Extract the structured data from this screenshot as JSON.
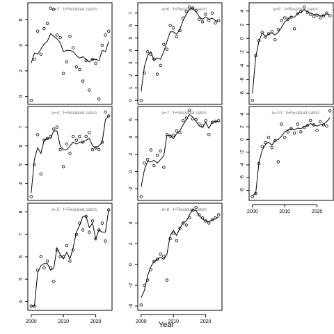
{
  "figure": {
    "xlabel": "Year"
  },
  "chart_data": [
    {
      "type": "scatter",
      "title": "a=3 : f=Residual catch",
      "xlim": [
        2000,
        2024
      ],
      "ylim": [
        -0.3,
        7.0
      ],
      "yticks": [
        0,
        2,
        4,
        6
      ],
      "xticks": [],
      "x": [
        2000,
        2001,
        2002,
        2003,
        2004,
        2005,
        2006,
        2007,
        2008,
        2009,
        2010,
        2011,
        2012,
        2013,
        2014,
        2015,
        2016,
        2017,
        2018,
        2019,
        2020,
        2021,
        2022,
        2023,
        2024
      ],
      "points": [
        -0.3,
        2.9,
        5.1,
        3.3,
        5.3,
        5.7,
        6.9,
        6.8,
        4.8,
        4.6,
        1.8,
        2.7,
        4.7,
        3.8,
        2.3,
        2.1,
        1.2,
        2.8,
        0.5,
        2.9,
        2.6,
        -0.2,
        4.0,
        4.8,
        5.1
      ],
      "line": [
        2.6,
        3.4,
        3.3,
        3.7,
        4.1,
        4.3,
        4.9,
        4.7,
        4.5,
        4.2,
        3.5,
        3.6,
        3.6,
        3.5,
        3.2,
        3.0,
        3.1,
        2.9,
        2.7,
        2.9,
        2.9,
        2.8,
        3.6,
        3.5,
        4.3
      ]
    },
    {
      "type": "scatter",
      "title": "a=4 : f=Residual catch",
      "xlim": [
        2000,
        2024
      ],
      "ylim": [
        3.3,
        7.9
      ],
      "yticks": [
        4,
        5,
        6,
        7
      ],
      "xticks": [],
      "x": [
        2000,
        2001,
        2002,
        2003,
        2004,
        2005,
        2006,
        2007,
        2008,
        2009,
        2010,
        2011,
        2012,
        2013,
        2014,
        2015,
        2016,
        2017,
        2018,
        2019,
        2020,
        2021,
        2022,
        2023,
        2024
      ],
      "points": [
        3.3,
        5.0,
        6.6,
        4.5,
        6.3,
        6.4,
        6.5,
        6.9,
        7.0,
        5.8,
        4.9,
        6.1,
        5.6,
        6.5,
        6.3,
        6.5,
        6.2,
        6.5,
        6.7,
        5.8,
        5.9,
        5.8,
        6.2,
        7.8,
        7.6
      ],
      "line": [
        3.5,
        5.3,
        5.9,
        5.6,
        6.3,
        6.4,
        6.4,
        6.8,
        6.8,
        6.0,
        5.8,
        5.8,
        6.0,
        6.2,
        6.1,
        6.2,
        6.2,
        6.3,
        6.4,
        6.0,
        5.9,
        6.0,
        6.2,
        7.4,
        7.6
      ]
    },
    {
      "type": "scatter",
      "title": "a=5 : f=Residual catch",
      "xlim": [
        2000,
        2024
      ],
      "ylim": [
        3.8,
        8.2
      ],
      "yticks": [
        4,
        5,
        6,
        7,
        8
      ],
      "xticks": [
        2000,
        2010,
        2020
      ],
      "x": [
        2000,
        2001,
        2002,
        2003,
        2004,
        2005,
        2006,
        2007,
        2008,
        2009,
        2010,
        2011,
        2012,
        2013,
        2014,
        2015,
        2016,
        2017,
        2018,
        2019,
        2020,
        2021,
        2022,
        2023,
        2024
      ],
      "points": [
        3.8,
        3.8,
        5.4,
        6.0,
        5.5,
        5.8,
        5.5,
        4.9,
        6.3,
        6.0,
        6.0,
        6.5,
        5.8,
        6.3,
        7.0,
        7.5,
        7.2,
        7.8,
        7.1,
        7.6,
        6.8,
        7.2,
        7.5,
        6.7,
        8.1
      ],
      "line": [
        3.8,
        3.8,
        5.3,
        5.6,
        5.7,
        5.7,
        5.4,
        5.5,
        6.4,
        6.1,
        5.9,
        6.2,
        5.9,
        6.4,
        7.1,
        7.4,
        7.8,
        7.8,
        7.3,
        7.5,
        6.8,
        7.2,
        7.1,
        7.1,
        8.1
      ]
    },
    {
      "type": "scatter",
      "title": "a=6 : f=Residual catch",
      "xlim": [
        2000,
        2024
      ],
      "ylim": [
        0.0,
        7.5
      ],
      "yticks": [
        0,
        1,
        2,
        3,
        4,
        5,
        6,
        7
      ],
      "xticks": [],
      "x": [
        2000,
        2001,
        2002,
        2003,
        2004,
        2005,
        2006,
        2007,
        2008,
        2009,
        2010,
        2011,
        2012,
        2013,
        2014,
        2015,
        2016,
        2017,
        2018,
        2019,
        2020,
        2021,
        2022,
        2023,
        2024
      ],
      "points": [
        0.0,
        2.2,
        3.9,
        3.7,
        3.3,
        2.1,
        2.8,
        4.5,
        4.1,
        6.0,
        5.8,
        5.1,
        5.6,
        6.6,
        7.1,
        7.5,
        7.4,
        7.2,
        6.5,
        6.3,
        6.9,
        6.4,
        7.0,
        6.2,
        6.4
      ],
      "line": [
        0.7,
        2.7,
        3.6,
        3.9,
        3.2,
        3.4,
        3.3,
        3.9,
        4.7,
        5.5,
        5.5,
        5.3,
        5.7,
        6.4,
        6.9,
        7.3,
        7.4,
        7.1,
        6.7,
        6.5,
        6.7,
        6.5,
        6.6,
        6.4,
        6.3
      ]
    },
    {
      "type": "scatter",
      "title": "a=7 : f=Residual catch",
      "xlim": [
        2000,
        2024
      ],
      "ylim": [
        -2.9,
        7.1
      ],
      "yticks": [
        -2,
        0,
        2,
        4,
        6
      ],
      "xticks": [],
      "x": [
        2000,
        2001,
        2002,
        2003,
        2004,
        2005,
        2006,
        2007,
        2008,
        2009,
        2010,
        2011,
        2012,
        2013,
        2014,
        2015,
        2016,
        2017,
        2018,
        2019,
        2020,
        2021,
        2022,
        2023,
        2024
      ],
      "points": [
        -2.9,
        1.0,
        1.4,
        2.5,
        0.7,
        1.9,
        2.4,
        0.5,
        4.3,
        4.1,
        4.2,
        4.7,
        4.5,
        5.9,
        6.2,
        7.1,
        6.1,
        6.0,
        5.5,
        5.3,
        5.9,
        4.3,
        5.7,
        5.8,
        5.9
      ],
      "line": [
        -1.8,
        0.2,
        1.2,
        1.1,
        1.3,
        1.0,
        1.4,
        1.8,
        4.2,
        4.2,
        3.8,
        4.4,
        4.7,
        5.4,
        6.0,
        6.6,
        6.3,
        5.8,
        5.3,
        5.1,
        5.7,
        5.0,
        5.7,
        5.8,
        5.8
      ]
    },
    {
      "type": "scatter",
      "title": "a=8 : f=Residual catch",
      "xlim": [
        2000,
        2024
      ],
      "ylim": [
        -4.0,
        5.5
      ],
      "yticks": [
        -4,
        -2,
        0,
        2,
        4
      ],
      "xticks": [
        2000,
        2010,
        2020
      ],
      "x": [
        2000,
        2001,
        2002,
        2003,
        2004,
        2005,
        2006,
        2007,
        2008,
        2009,
        2010,
        2011,
        2012,
        2013,
        2014,
        2015,
        2016,
        2017,
        2018,
        2019,
        2020,
        2021,
        2022,
        2023,
        2024
      ],
      "points": [
        -3.9,
        -2.0,
        -1.5,
        -0.5,
        0.3,
        0.5,
        1.0,
        0.8,
        -1.5,
        2.5,
        3.0,
        2.3,
        3.5,
        4.0,
        3.8,
        4.5,
        5.2,
        5.5,
        4.8,
        4.5,
        4.2,
        4.0,
        4.3,
        4.5,
        4.8
      ],
      "line": [
        -3.2,
        -2.5,
        -1.1,
        -0.2,
        0.3,
        0.5,
        0.7,
        0.5,
        1.0,
        2.8,
        3.3,
        2.8,
        3.5,
        4.0,
        4.2,
        4.8,
        5.3,
        5.2,
        4.7,
        4.4,
        4.2,
        4.1,
        4.3,
        4.4,
        4.6
      ]
    },
    {
      "type": "scatter",
      "title": "a=9 : f=Residual catch",
      "xlim": [
        2000,
        2024
      ],
      "ylim": [
        -9.0,
        4.6
      ],
      "yticks": [
        -8,
        -6,
        -4,
        -2,
        0,
        2,
        4
      ],
      "xticks": [],
      "x": [
        2000,
        2001,
        2002,
        2003,
        2004,
        2005,
        2006,
        2007,
        2008,
        2009,
        2010,
        2011,
        2012,
        2013,
        2014,
        2015,
        2016,
        2017,
        2018,
        2019,
        2020,
        2021,
        2022,
        2023,
        2024
      ],
      "points": [
        -9.0,
        -2.5,
        -0.3,
        0.9,
        0.2,
        0.7,
        1.0,
        -0.2,
        1.3,
        2.6,
        3.0,
        2.8,
        3.1,
        1.4,
        3.6,
        3.9,
        4.6,
        3.8,
        3.5,
        3.2,
        3.4,
        3.0,
        3.3,
        3.7,
        3.3
      ],
      "line": [
        -8.0,
        -2.7,
        -0.4,
        0.8,
        0.3,
        0.6,
        0.8,
        0.5,
        0.9,
        1.6,
        2.4,
        2.8,
        3.2,
        3.1,
        3.6,
        3.8,
        4.2,
        3.9,
        3.7,
        3.5,
        3.5,
        3.3,
        3.3,
        3.6,
        3.4
      ]
    },
    {
      "type": "scatter",
      "title": "a=10 : f=Residual catch",
      "xlim": [
        2000,
        2024
      ],
      "ylim": [
        -9.0,
        4.6
      ],
      "yticks": [
        -8,
        -6,
        -4,
        -2,
        0,
        2,
        4
      ],
      "xticks": [
        2000,
        2010,
        2020
      ],
      "x": [
        2000,
        2001,
        2002,
        2003,
        2004,
        2005,
        2006,
        2007,
        2008,
        2009,
        2010,
        2011,
        2012,
        2013,
        2014,
        2015,
        2016,
        2017,
        2018,
        2019,
        2020,
        2021,
        2022,
        2023,
        2024
      ],
      "points": [
        -9.0,
        -8.5,
        -3.8,
        -1.1,
        -0.5,
        0.3,
        -1.3,
        -0.2,
        -3.5,
        2.4,
        0.3,
        1.2,
        1.7,
        1.0,
        2.4,
        1.2,
        1.9,
        2.2,
        3.0,
        2.3,
        1.4,
        2.8,
        2.3,
        2.1,
        4.5
      ],
      "line": [
        -8.8,
        -8.5,
        -3.6,
        -1.7,
        -0.8,
        -0.4,
        -0.9,
        -0.2,
        0.0,
        0.5,
        1.2,
        1.5,
        1.7,
        1.5,
        1.8,
        1.7,
        2.0,
        2.2,
        2.5,
        2.3,
        2.1,
        2.3,
        2.4,
        2.8,
        3.4
      ]
    }
  ]
}
